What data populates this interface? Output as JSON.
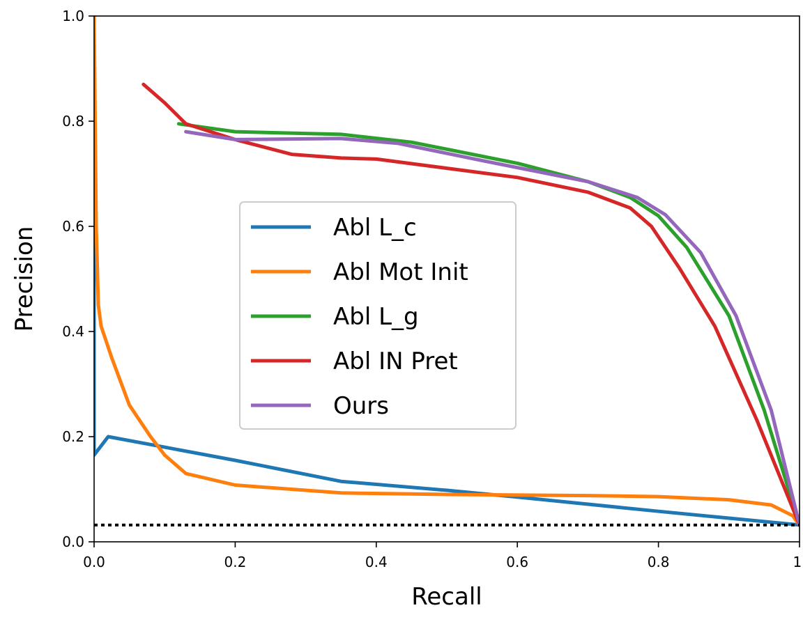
{
  "chart_data": {
    "type": "line",
    "xlabel": "Recall",
    "ylabel": "Precision",
    "xlim": [
      0.0,
      1.0
    ],
    "ylim": [
      0.0,
      1.0
    ],
    "x_ticks": [
      "0.0",
      "0.2",
      "0.4",
      "0.6",
      "0.8",
      "1."
    ],
    "y_ticks": [
      "0.0",
      "0.2",
      "0.4",
      "0.6",
      "0.8",
      "1.0"
    ],
    "grid": false,
    "legend_position": "center",
    "baseline": {
      "y": 0.032,
      "style": "dotted",
      "color": "#000000"
    },
    "series": [
      {
        "name": "Abl L_c",
        "color": "#1f77b4",
        "points": [
          [
            0.0,
            1.0
          ],
          [
            0.0,
            0.45
          ],
          [
            0.0,
            0.165
          ],
          [
            0.02,
            0.2
          ],
          [
            0.1,
            0.18
          ],
          [
            0.2,
            0.155
          ],
          [
            0.35,
            0.115
          ],
          [
            0.5,
            0.098
          ],
          [
            0.6,
            0.085
          ],
          [
            0.8,
            0.058
          ],
          [
            0.9,
            0.045
          ],
          [
            1.0,
            0.032
          ]
        ]
      },
      {
        "name": "Abl Mot Init",
        "color": "#ff7f0e",
        "points": [
          [
            0.0,
            1.0
          ],
          [
            0.003,
            0.6
          ],
          [
            0.006,
            0.45
          ],
          [
            0.01,
            0.41
          ],
          [
            0.025,
            0.35
          ],
          [
            0.05,
            0.26
          ],
          [
            0.08,
            0.2
          ],
          [
            0.1,
            0.165
          ],
          [
            0.13,
            0.13
          ],
          [
            0.2,
            0.108
          ],
          [
            0.35,
            0.093
          ],
          [
            0.5,
            0.09
          ],
          [
            0.7,
            0.088
          ],
          [
            0.8,
            0.086
          ],
          [
            0.9,
            0.08
          ],
          [
            0.96,
            0.07
          ],
          [
            0.99,
            0.05
          ],
          [
            1.0,
            0.032
          ]
        ]
      },
      {
        "name": "Abl L_g",
        "color": "#2ca02c",
        "points": [
          [
            0.12,
            0.795
          ],
          [
            0.2,
            0.78
          ],
          [
            0.35,
            0.775
          ],
          [
            0.45,
            0.76
          ],
          [
            0.6,
            0.72
          ],
          [
            0.7,
            0.685
          ],
          [
            0.76,
            0.655
          ],
          [
            0.8,
            0.62
          ],
          [
            0.84,
            0.56
          ],
          [
            0.9,
            0.43
          ],
          [
            0.95,
            0.25
          ],
          [
            1.0,
            0.032
          ]
        ]
      },
      {
        "name": "Abl IN Pret",
        "color": "#d62728",
        "points": [
          [
            0.07,
            0.87
          ],
          [
            0.1,
            0.835
          ],
          [
            0.13,
            0.795
          ],
          [
            0.2,
            0.765
          ],
          [
            0.28,
            0.737
          ],
          [
            0.35,
            0.73
          ],
          [
            0.4,
            0.728
          ],
          [
            0.6,
            0.693
          ],
          [
            0.7,
            0.665
          ],
          [
            0.76,
            0.635
          ],
          [
            0.79,
            0.6
          ],
          [
            0.83,
            0.52
          ],
          [
            0.88,
            0.41
          ],
          [
            0.94,
            0.23
          ],
          [
            1.0,
            0.032
          ]
        ]
      },
      {
        "name": "Ours",
        "color": "#9467bd",
        "points": [
          [
            0.13,
            0.78
          ],
          [
            0.2,
            0.765
          ],
          [
            0.35,
            0.767
          ],
          [
            0.43,
            0.758
          ],
          [
            0.55,
            0.725
          ],
          [
            0.7,
            0.685
          ],
          [
            0.77,
            0.655
          ],
          [
            0.81,
            0.622
          ],
          [
            0.86,
            0.55
          ],
          [
            0.91,
            0.43
          ],
          [
            0.96,
            0.25
          ],
          [
            1.0,
            0.032
          ]
        ]
      }
    ]
  }
}
